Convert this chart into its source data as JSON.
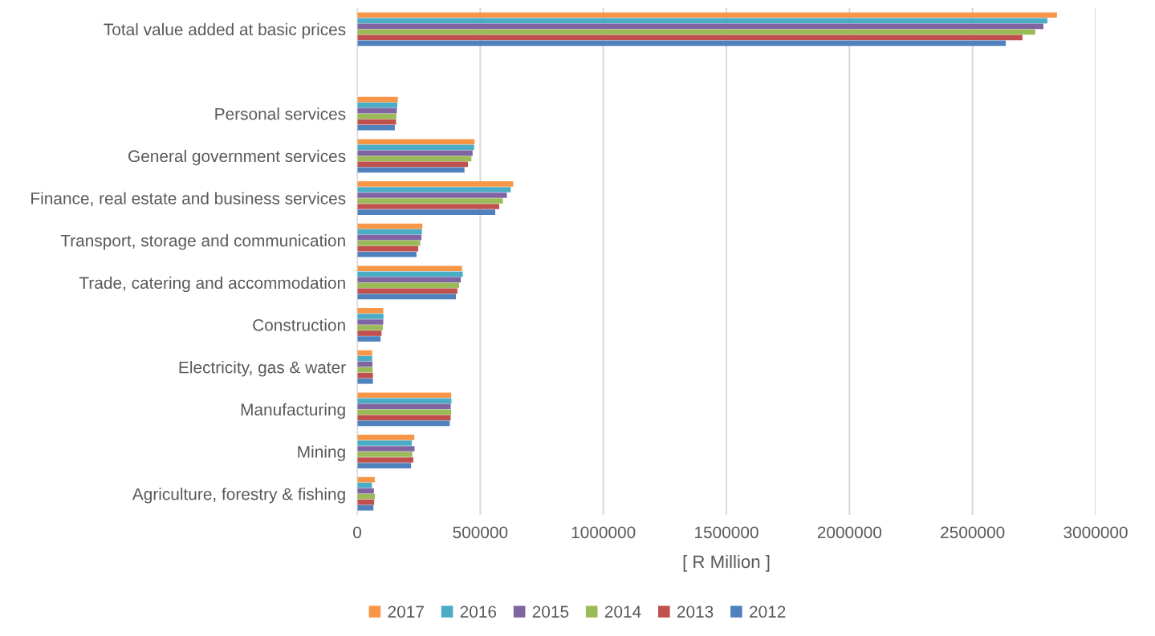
{
  "chart_data": {
    "type": "bar",
    "orientation": "horizontal",
    "xlabel": "[ R Million ]",
    "categories": [
      "Total value added at basic prices",
      null,
      "Personal services",
      "General government services",
      "Finance, real estate and business services",
      "Transport, storage and communication",
      "Trade, catering and accommodation",
      "Construction",
      "Electricity, gas & water",
      "Manufacturing",
      "Mining",
      "Agriculture, forestry & fishing"
    ],
    "series": [
      {
        "name": "2017",
        "color": "#f79646",
        "values": [
          2843000,
          null,
          165000,
          477000,
          634000,
          265000,
          426000,
          106000,
          61000,
          382000,
          232000,
          72000
        ]
      },
      {
        "name": "2016",
        "color": "#4bacc6",
        "values": [
          2804000,
          null,
          163000,
          475000,
          624000,
          263000,
          429000,
          107000,
          61000,
          383000,
          222000,
          60000
        ]
      },
      {
        "name": "2015",
        "color": "#8064a2",
        "values": [
          2788000,
          null,
          161000,
          469000,
          608000,
          261000,
          421000,
          106000,
          62000,
          380000,
          233000,
          68000
        ]
      },
      {
        "name": "2014",
        "color": "#9bbb59",
        "values": [
          2755000,
          null,
          159000,
          464000,
          592000,
          256000,
          414000,
          104000,
          63000,
          382000,
          224000,
          72000
        ]
      },
      {
        "name": "2013",
        "color": "#c0504d",
        "values": [
          2703000,
          null,
          158000,
          450000,
          577000,
          248000,
          407000,
          99000,
          64000,
          380000,
          228000,
          69000
        ]
      },
      {
        "name": "2012",
        "color": "#4f81bd",
        "values": [
          2635000,
          null,
          153000,
          436000,
          561000,
          241000,
          401000,
          95000,
          64000,
          376000,
          219000,
          66000
        ]
      }
    ],
    "xlim": [
      0,
      3000000
    ],
    "xticks": [
      0,
      500000,
      1000000,
      1500000,
      2000000,
      2500000,
      3000000
    ],
    "grid": "x",
    "legend": "bottom"
  }
}
